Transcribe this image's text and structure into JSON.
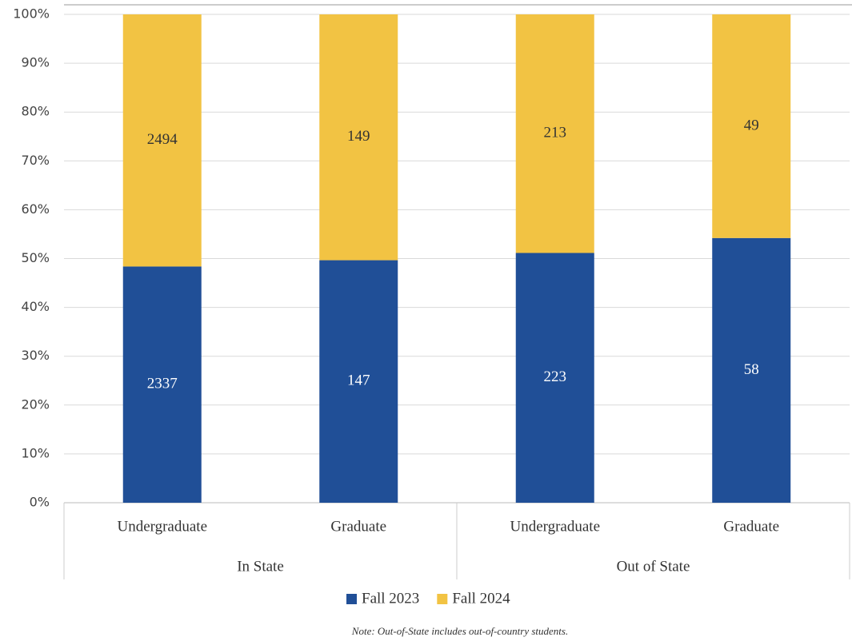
{
  "chart_data": {
    "type": "bar",
    "stacking": "percent",
    "groups": [
      {
        "label": "In State",
        "categories": [
          "Undergraduate",
          "Graduate"
        ]
      },
      {
        "label": "Out of State",
        "categories": [
          "Undergraduate",
          "Graduate"
        ]
      }
    ],
    "series": [
      {
        "name": "Fall 2023",
        "color": "#204f97",
        "values": [
          2337,
          147,
          223,
          58
        ]
      },
      {
        "name": "Fall 2024",
        "color": "#f2c343",
        "values": [
          2494,
          149,
          213,
          49
        ]
      }
    ],
    "ylim": [
      0,
      100
    ],
    "yticks": [
      {
        "value": 0,
        "label": "0%"
      },
      {
        "value": 10,
        "label": "10%"
      },
      {
        "value": 20,
        "label": "20%"
      },
      {
        "value": 30,
        "label": "30%"
      },
      {
        "value": 40,
        "label": "40%"
      },
      {
        "value": 50,
        "label": "50%"
      },
      {
        "value": 60,
        "label": "60%"
      },
      {
        "value": 70,
        "label": "70%"
      },
      {
        "value": 80,
        "label": "80%"
      },
      {
        "value": 90,
        "label": "90%"
      },
      {
        "value": 100,
        "label": "100%"
      }
    ],
    "grid": true,
    "legend": "bottom",
    "note": "Note: Out-of-State includes out-of-country students."
  }
}
